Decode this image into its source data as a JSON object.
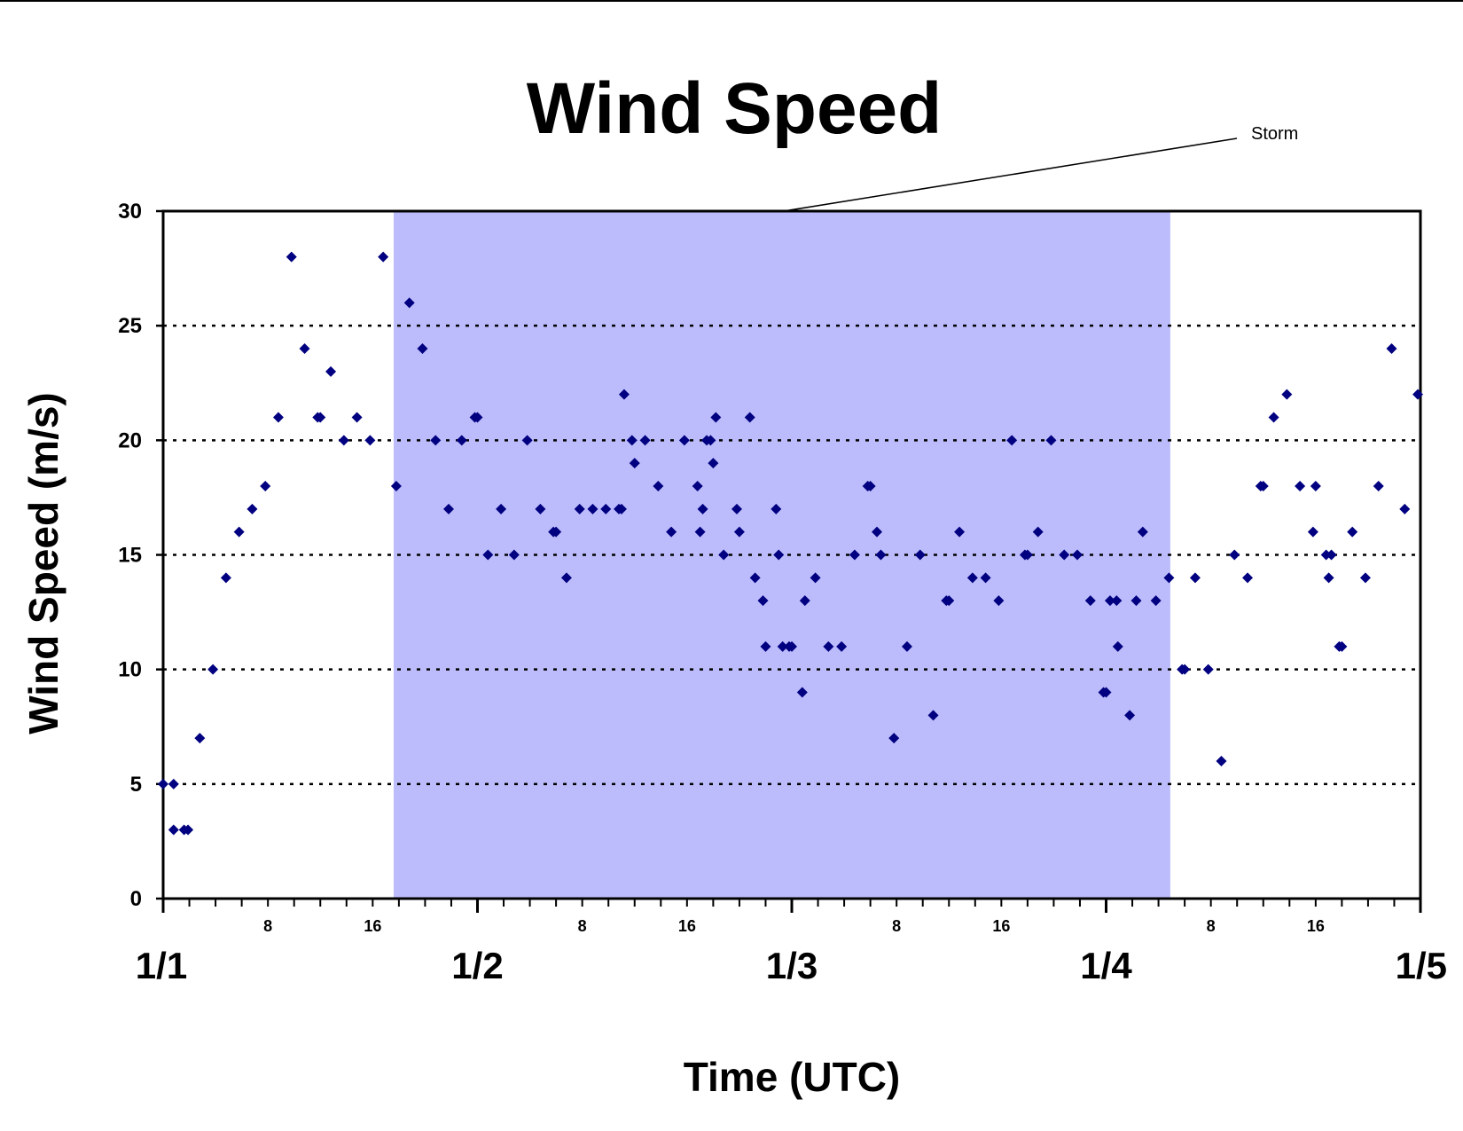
{
  "chart_data": {
    "type": "scatter",
    "title": "Wind Speed",
    "xlabel": "Time (UTC)",
    "ylabel": "Wind Speed (m/s)",
    "xlim": [
      0,
      96
    ],
    "ylim": [
      0,
      30
    ],
    "y_ticks": [
      "0",
      "5",
      "10",
      "15",
      "20",
      "25",
      "30"
    ],
    "y_gridlines": [
      5,
      10,
      15,
      20,
      25
    ],
    "grid_style": "dotted horizontal",
    "day_ticks": [
      {
        "label": "1/1",
        "hour": 0
      },
      {
        "label": "1/2",
        "hour": 24
      },
      {
        "label": "1/3",
        "hour": 48
      },
      {
        "label": "1/4",
        "hour": 72
      },
      {
        "label": "1/5",
        "hour": 96
      }
    ],
    "hour_ticks": [
      {
        "label": "8",
        "hour": 8
      },
      {
        "label": "16",
        "hour": 16
      },
      {
        "label": "8",
        "hour": 32
      },
      {
        "label": "16",
        "hour": 40
      },
      {
        "label": "8",
        "hour": 56
      },
      {
        "label": "16",
        "hour": 64
      },
      {
        "label": "8",
        "hour": 80
      },
      {
        "label": "16",
        "hour": 88
      }
    ],
    "shaded_region": {
      "label": "Storm",
      "from_hour": 17.6,
      "to_hour": 76.9,
      "color": "#bcbcfc"
    },
    "marker_color": "#000080",
    "points": [
      {
        "x": 0,
        "y": 5
      },
      {
        "x": 0.8,
        "y": 5
      },
      {
        "x": 0.8,
        "y": 3
      },
      {
        "x": 1.6,
        "y": 3
      },
      {
        "x": 1.9,
        "y": 3
      },
      {
        "x": 2.8,
        "y": 7
      },
      {
        "x": 3.8,
        "y": 10
      },
      {
        "x": 4.8,
        "y": 14
      },
      {
        "x": 5.8,
        "y": 16
      },
      {
        "x": 6.8,
        "y": 17
      },
      {
        "x": 7.8,
        "y": 18
      },
      {
        "x": 8.8,
        "y": 21
      },
      {
        "x": 9.8,
        "y": 28
      },
      {
        "x": 10.8,
        "y": 24
      },
      {
        "x": 11.8,
        "y": 21
      },
      {
        "x": 12,
        "y": 21
      },
      {
        "x": 12.8,
        "y": 23
      },
      {
        "x": 13.8,
        "y": 20
      },
      {
        "x": 14.8,
        "y": 21
      },
      {
        "x": 15.8,
        "y": 20
      },
      {
        "x": 16.8,
        "y": 28
      },
      {
        "x": 17.8,
        "y": 18
      },
      {
        "x": 18.8,
        "y": 26
      },
      {
        "x": 19.8,
        "y": 24
      },
      {
        "x": 20.8,
        "y": 20
      },
      {
        "x": 21.8,
        "y": 17
      },
      {
        "x": 22.8,
        "y": 20
      },
      {
        "x": 23.8,
        "y": 21
      },
      {
        "x": 24,
        "y": 21
      },
      {
        "x": 24.8,
        "y": 15
      },
      {
        "x": 25.8,
        "y": 17
      },
      {
        "x": 26.8,
        "y": 15
      },
      {
        "x": 27.8,
        "y": 20
      },
      {
        "x": 28.8,
        "y": 17
      },
      {
        "x": 29.8,
        "y": 16
      },
      {
        "x": 30,
        "y": 16
      },
      {
        "x": 30.8,
        "y": 14
      },
      {
        "x": 31.8,
        "y": 17
      },
      {
        "x": 32.8,
        "y": 17
      },
      {
        "x": 33.8,
        "y": 17
      },
      {
        "x": 34.8,
        "y": 17
      },
      {
        "x": 35,
        "y": 17
      },
      {
        "x": 35.2,
        "y": 22
      },
      {
        "x": 35.8,
        "y": 20
      },
      {
        "x": 36,
        "y": 19
      },
      {
        "x": 36.8,
        "y": 20
      },
      {
        "x": 37.8,
        "y": 18
      },
      {
        "x": 38.8,
        "y": 16
      },
      {
        "x": 39.8,
        "y": 20
      },
      {
        "x": 40.8,
        "y": 18
      },
      {
        "x": 41,
        "y": 16
      },
      {
        "x": 41.2,
        "y": 17
      },
      {
        "x": 41.5,
        "y": 20
      },
      {
        "x": 41.8,
        "y": 20
      },
      {
        "x": 42,
        "y": 19
      },
      {
        "x": 42.2,
        "y": 21
      },
      {
        "x": 42.8,
        "y": 15
      },
      {
        "x": 43.8,
        "y": 17
      },
      {
        "x": 44,
        "y": 16
      },
      {
        "x": 44.8,
        "y": 21
      },
      {
        "x": 45.2,
        "y": 14
      },
      {
        "x": 45.8,
        "y": 13
      },
      {
        "x": 46,
        "y": 11
      },
      {
        "x": 46.8,
        "y": 17
      },
      {
        "x": 47,
        "y": 15
      },
      {
        "x": 47.3,
        "y": 11
      },
      {
        "x": 47.8,
        "y": 11
      },
      {
        "x": 48,
        "y": 11
      },
      {
        "x": 48.8,
        "y": 9
      },
      {
        "x": 49,
        "y": 13
      },
      {
        "x": 49.8,
        "y": 14
      },
      {
        "x": 50.8,
        "y": 11
      },
      {
        "x": 51.8,
        "y": 11
      },
      {
        "x": 52.8,
        "y": 15
      },
      {
        "x": 53.8,
        "y": 18
      },
      {
        "x": 54,
        "y": 18
      },
      {
        "x": 54.5,
        "y": 16
      },
      {
        "x": 54.8,
        "y": 15
      },
      {
        "x": 55.8,
        "y": 7
      },
      {
        "x": 56.8,
        "y": 11
      },
      {
        "x": 57.8,
        "y": 15
      },
      {
        "x": 58.8,
        "y": 8
      },
      {
        "x": 59.8,
        "y": 13
      },
      {
        "x": 60,
        "y": 13
      },
      {
        "x": 60.8,
        "y": 16
      },
      {
        "x": 61.8,
        "y": 14
      },
      {
        "x": 62.8,
        "y": 14
      },
      {
        "x": 63.8,
        "y": 13
      },
      {
        "x": 64.8,
        "y": 20
      },
      {
        "x": 65.8,
        "y": 15
      },
      {
        "x": 66,
        "y": 15
      },
      {
        "x": 66.8,
        "y": 16
      },
      {
        "x": 67.8,
        "y": 20
      },
      {
        "x": 68.8,
        "y": 15
      },
      {
        "x": 69.8,
        "y": 15
      },
      {
        "x": 70.8,
        "y": 13
      },
      {
        "x": 71.8,
        "y": 9
      },
      {
        "x": 72,
        "y": 9
      },
      {
        "x": 72.3,
        "y": 13
      },
      {
        "x": 72.8,
        "y": 13
      },
      {
        "x": 72.9,
        "y": 11
      },
      {
        "x": 73.8,
        "y": 8
      },
      {
        "x": 74.3,
        "y": 13
      },
      {
        "x": 74.8,
        "y": 16
      },
      {
        "x": 75.8,
        "y": 13
      },
      {
        "x": 76.8,
        "y": 14
      },
      {
        "x": 77.8,
        "y": 10
      },
      {
        "x": 78,
        "y": 10
      },
      {
        "x": 78.8,
        "y": 14
      },
      {
        "x": 79.8,
        "y": 10
      },
      {
        "x": 80.8,
        "y": 6
      },
      {
        "x": 81.8,
        "y": 15
      },
      {
        "x": 82.8,
        "y": 14
      },
      {
        "x": 83.8,
        "y": 18
      },
      {
        "x": 84,
        "y": 18
      },
      {
        "x": 84.8,
        "y": 21
      },
      {
        "x": 85.8,
        "y": 22
      },
      {
        "x": 86.8,
        "y": 18
      },
      {
        "x": 87.8,
        "y": 16
      },
      {
        "x": 88,
        "y": 18
      },
      {
        "x": 88.8,
        "y": 15
      },
      {
        "x": 89,
        "y": 14
      },
      {
        "x": 89.2,
        "y": 15
      },
      {
        "x": 89.8,
        "y": 11
      },
      {
        "x": 90,
        "y": 11
      },
      {
        "x": 90.8,
        "y": 16
      },
      {
        "x": 91.8,
        "y": 14
      },
      {
        "x": 92.8,
        "y": 18
      },
      {
        "x": 93.8,
        "y": 24
      },
      {
        "x": 94.8,
        "y": 17
      },
      {
        "x": 95.8,
        "y": 22
      }
    ]
  }
}
